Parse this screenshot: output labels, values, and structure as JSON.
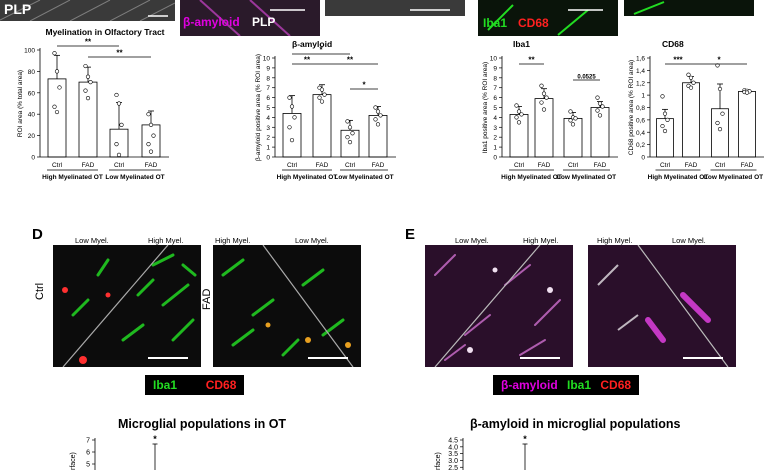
{
  "top_strip": {
    "plp_label": "PLP",
    "mid_labels": {
      "bamyloid": "β-amyloid",
      "plp": "PLP"
    },
    "right_labels": {
      "iba1": "Iba1",
      "cd68": "CD68"
    }
  },
  "colors": {
    "magenta": "#e000e0",
    "green": "#22dd22",
    "red": "#ff2020",
    "bar_fill": "#ffffff",
    "axis": "#000000"
  },
  "panels": {
    "D": {
      "letter": "D",
      "ctrl_label": "Ctrl",
      "fad_label": "FAD",
      "ctrl_low": "Low Myel.",
      "ctrl_high": "High Myel.",
      "fad_high": "High Myel.",
      "fad_low": "Low Myel.",
      "legend_iba1": "Iba1",
      "legend_cd68": "CD68"
    },
    "E": {
      "letter": "E",
      "left_low": "Low Myel.",
      "left_high": "High Myel.",
      "right_high": "High Myel.",
      "right_low": "Low Myel.",
      "legend_bamyloid": "β-amyloid",
      "legend_iba1": "Iba1",
      "legend_cd68": "CD68"
    }
  },
  "bottom_titles": {
    "left": "Microglial populations in OT",
    "right": "β-amyloid in microglial populations"
  },
  "chart_data": [
    {
      "id": "myelination",
      "type": "bar",
      "title": "Myelination in Olfactory Tract",
      "ylabel": "ROI area (% total area)",
      "ylim": [
        0,
        100
      ],
      "yticks": [
        0,
        20,
        40,
        60,
        80,
        100
      ],
      "categories": [
        "Ctrl",
        "FAD",
        "Ctrl",
        "FAD"
      ],
      "groups": [
        "High Myelinated OT",
        "Low Myelinated OT"
      ],
      "values": [
        73,
        70,
        26,
        30
      ],
      "errors": [
        22,
        14,
        25,
        13
      ],
      "points": [
        [
          97,
          80,
          65,
          47,
          42
        ],
        [
          85,
          75,
          70,
          62,
          55
        ],
        [
          58,
          50,
          30,
          12,
          2
        ],
        [
          40,
          30,
          20,
          12,
          5
        ]
      ],
      "significance": [
        {
          "label": "**",
          "from": 0,
          "to": 2
        },
        {
          "label": "**",
          "from": 1,
          "to": 3
        }
      ]
    },
    {
      "id": "bamyloid",
      "type": "bar",
      "title": "β-amyloid",
      "ylabel": "β-amyloid positive area (% ROI area)",
      "ylim": [
        0,
        10
      ],
      "yticks": [
        0,
        1,
        2,
        3,
        4,
        5,
        6,
        7,
        8,
        9,
        10
      ],
      "categories": [
        "Ctrl",
        "FAD",
        "Ctrl",
        "FAD"
      ],
      "groups": [
        "High Myelinated OT",
        "Low Myelinated OT"
      ],
      "values": [
        4.4,
        6.3,
        2.7,
        4.2
      ],
      "errors": [
        1.8,
        1.0,
        1.0,
        0.9
      ],
      "points": [
        [
          6.0,
          5.1,
          4.0,
          3.0,
          1.7
        ],
        [
          7.0,
          6.8,
          6.3,
          6.0,
          5.6
        ],
        [
          3.6,
          3.0,
          2.4,
          2.0,
          1.5
        ],
        [
          5.0,
          4.6,
          4.2,
          3.8,
          3.3
        ]
      ],
      "significance": [
        {
          "label": "*",
          "from": 0,
          "to": 2
        },
        {
          "label": "**",
          "from": 0,
          "to": 1
        },
        {
          "label": "**",
          "from": 1,
          "to": 3
        },
        {
          "label": "*",
          "from": 2,
          "to": 3
        }
      ]
    },
    {
      "id": "iba1",
      "type": "bar",
      "title": "Iba1",
      "ylabel": "Iba1 positive area (% ROI area)",
      "ylim": [
        0,
        10
      ],
      "yticks": [
        0,
        1,
        2,
        3,
        4,
        5,
        6,
        7,
        8,
        9,
        10
      ],
      "categories": [
        "Ctrl",
        "FAD",
        "Ctrl",
        "FAD"
      ],
      "groups": [
        "High Myelinated OT",
        "Low Myelinated OT"
      ],
      "values": [
        4.3,
        5.9,
        3.9,
        5.0
      ],
      "errors": [
        0.8,
        1.0,
        0.6,
        0.6
      ],
      "points": [
        [
          5.2,
          4.6,
          4.3,
          4.0,
          3.5
        ],
        [
          7.2,
          6.4,
          6.0,
          5.5,
          4.8
        ],
        [
          4.6,
          4.0,
          3.9,
          3.7,
          3.3
        ],
        [
          6.0,
          5.4,
          5.1,
          4.7,
          4.2
        ]
      ],
      "significance": [
        {
          "label": "**",
          "from": 0,
          "to": 1
        },
        {
          "label": "0.0525",
          "from": 2,
          "to": 3
        }
      ]
    },
    {
      "id": "cd68",
      "type": "bar",
      "title": "CD68",
      "ylabel": "CD68 positive area (% ROI area)",
      "ylim": [
        0,
        1.6
      ],
      "yticks": [
        0,
        0.2,
        0.4,
        0.6,
        0.8,
        1.0,
        1.2,
        1.4,
        1.6
      ],
      "ytick_labels": [
        "0",
        "0,2",
        "0,4",
        "0,6",
        "0,8",
        "1",
        "1,2",
        "1,4",
        "1,6"
      ],
      "categories": [
        "Ctrl",
        "FAD",
        "Ctrl",
        "FAD"
      ],
      "groups": [
        "High Myelinated OT",
        "Low Myelinated OT"
      ],
      "values": [
        0.62,
        1.2,
        0.78,
        1.06
      ],
      "errors": [
        0.15,
        0.1,
        0.4,
        0.02
      ],
      "points": [
        [
          0.98,
          0.7,
          0.6,
          0.5,
          0.42
        ],
        [
          1.33,
          1.28,
          1.2,
          1.15,
          1.12
        ],
        [
          1.48,
          1.1,
          0.7,
          0.55,
          0.45
        ],
        [
          1.08,
          1.07,
          1.06,
          1.05,
          1.04
        ]
      ],
      "significance": [
        {
          "label": "***",
          "from": 0,
          "to": 1
        },
        {
          "label": "*",
          "from": 1,
          "to": 3
        }
      ]
    },
    {
      "id": "microglial_ot",
      "type": "bar",
      "ylabel": "urface)",
      "ylim": [
        4.5,
        7
      ],
      "yticks": [
        5,
        6,
        7
      ],
      "significance_label": "*"
    },
    {
      "id": "bamyloid_microglial",
      "type": "bar",
      "ylabel": "urface)",
      "ylim": [
        2.3,
        4.5
      ],
      "yticks": [
        2.5,
        3.0,
        3.5,
        4.0,
        4.5
      ],
      "ytick_labels": [
        "2.5",
        "3.0",
        "3.5",
        "4.0",
        "4.5"
      ],
      "significance_label": "*"
    }
  ]
}
